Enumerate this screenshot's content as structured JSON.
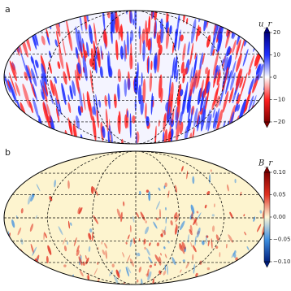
{
  "chart_data": [
    {
      "type": "map",
      "panel": "a",
      "colorbar_label": "u_r",
      "colors": [
        "#00007f",
        "#2030ff",
        "#ffffff",
        "#ff2020",
        "#7f0000"
      ],
      "clim": [
        -20,
        20
      ],
      "cticks": [
        20,
        {
          "value": 10,
          "label": "10"
        },
        0,
        {
          "value": -10,
          "label": "−10"
        },
        {
          "value": -20,
          "label": "−20"
        }
      ]
    },
    {
      "type": "map",
      "panel": "b",
      "colorbar_label": "B_r",
      "colors": [
        "#7f0000",
        "#e03020",
        "#fff8d8",
        "#4090e0",
        "#00207f"
      ],
      "clim": [
        -0.1,
        0.1
      ],
      "cticks": [
        {
          "value": 0.1,
          "label": "0.10"
        },
        {
          "value": 0.05,
          "label": "0.05"
        },
        {
          "value": 0,
          "label": "0.00"
        },
        {
          "value": -0.05,
          "label": "−0.05"
        },
        {
          "value": -0.1,
          "label": "−0.10"
        }
      ]
    }
  ]
}
